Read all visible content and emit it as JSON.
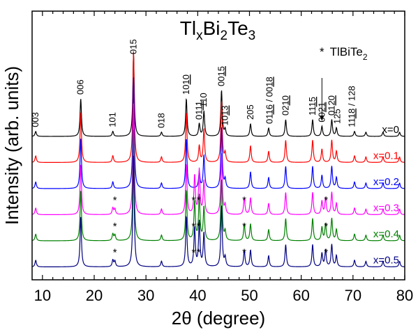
{
  "chart_data": {
    "type": "line",
    "title": "TlxBi2Te3",
    "title_parts": {
      "base1": "Tl",
      "sub1": "x",
      "base2": "Bi",
      "sub2": "2",
      "base3": "Te",
      "sub3": "3"
    },
    "xlabel": "2θ (degree)",
    "ylabel": "Intensity (arb. units)",
    "xlim": [
      8,
      80
    ],
    "x_ticks": [
      10,
      20,
      30,
      40,
      50,
      60,
      70,
      80
    ],
    "legend": {
      "marker": "*",
      "text": "TlBiTe",
      "sub": "2"
    },
    "series": [
      {
        "name": "x=0",
        "color": "#000000",
        "baseline": 0,
        "impurity": false
      },
      {
        "name": "x=0.1",
        "color": "#ff0000",
        "baseline": 1,
        "impurity": false
      },
      {
        "name": "x=0.2",
        "color": "#0000ff",
        "baseline": 2,
        "impurity": false
      },
      {
        "name": "x=0.3",
        "color": "#ff00ff",
        "baseline": 3,
        "impurity": true
      },
      {
        "name": "x=0.4",
        "color": "#008000",
        "baseline": 4,
        "impurity": true
      },
      {
        "name": "x=0.5",
        "color": "#000080",
        "baseline": 5,
        "impurity": true
      }
    ],
    "peaks": [
      {
        "x": 8.7,
        "h": 0.06
      },
      {
        "x": 17.4,
        "h": 0.45
      },
      {
        "x": 23.6,
        "h": 0.06
      },
      {
        "x": 27.6,
        "h": 1.0
      },
      {
        "x": 33.0,
        "h": 0.05
      },
      {
        "x": 37.8,
        "h": 0.45
      },
      {
        "x": 40.3,
        "h": 0.15
      },
      {
        "x": 41.2,
        "h": 0.3
      },
      {
        "x": 44.6,
        "h": 0.55
      },
      {
        "x": 45.3,
        "h": 0.08
      },
      {
        "x": 50.2,
        "h": 0.15
      },
      {
        "x": 53.7,
        "h": 0.1
      },
      {
        "x": 57.0,
        "h": 0.2
      },
      {
        "x": 62.2,
        "h": 0.2
      },
      {
        "x": 64.0,
        "h": 0.12
      },
      {
        "x": 65.9,
        "h": 0.2
      },
      {
        "x": 66.8,
        "h": 0.1
      },
      {
        "x": 70.3,
        "h": 0.06
      },
      {
        "x": 72.5,
        "h": 0.05
      },
      {
        "x": 75.8,
        "h": 0.05
      },
      {
        "x": 79.0,
        "h": 0.05
      }
    ],
    "impurity_peaks": [
      {
        "x": 24.0,
        "h": 0.05
      },
      {
        "x": 39.4,
        "h": 0.35
      },
      {
        "x": 40.3,
        "h": 0.25
      },
      {
        "x": 49.0,
        "h": 0.15
      },
      {
        "x": 64.7,
        "h": 0.15
      }
    ],
    "star_markers": [
      {
        "x": 24.0,
        "series_index": 3
      },
      {
        "x": 39.2,
        "series_index": 3
      },
      {
        "x": 40.2,
        "series_index": 3
      },
      {
        "x": 49.0,
        "series_index": 3
      },
      {
        "x": 64.8,
        "series_index": 3
      },
      {
        "x": 24.0,
        "series_index": 4
      },
      {
        "x": 39.2,
        "series_index": 4
      },
      {
        "x": 40.2,
        "series_index": 4
      },
      {
        "x": 49.0,
        "series_index": 4
      },
      {
        "x": 64.8,
        "series_index": 4
      },
      {
        "x": 24.0,
        "series_index": 5
      },
      {
        "x": 39.2,
        "series_index": 5
      },
      {
        "x": 40.2,
        "series_index": 5
      },
      {
        "x": 49.0,
        "series_index": 5
      },
      {
        "x": 64.8,
        "series_index": 5
      }
    ],
    "peak_labels": [
      {
        "x": 8.7,
        "text": "003",
        "under": ""
      },
      {
        "x": 17.4,
        "text": "006",
        "under": ""
      },
      {
        "x": 23.6,
        "text": "101",
        "under": ""
      },
      {
        "x": 27.6,
        "text": "015",
        "under": ""
      },
      {
        "x": 33.0,
        "text": "018",
        "under": ""
      },
      {
        "x": 37.8,
        "text": "10",
        "under": "10"
      },
      {
        "x": 40.3,
        "text": "01",
        "under": "11"
      },
      {
        "x": 41.2,
        "text": "110",
        "under": ""
      },
      {
        "x": 44.6,
        "text": "00",
        "under": "15"
      },
      {
        "x": 45.3,
        "text": "10",
        "under": "13"
      },
      {
        "x": 50.2,
        "text": "205",
        "under": ""
      },
      {
        "x": 53.9,
        "text": "01",
        "under": "16",
        "suffix": " / 00",
        "under2": "18"
      },
      {
        "x": 57.0,
        "text": "02",
        "under": "10"
      },
      {
        "x": 62.2,
        "text": "11",
        "under": "15"
      },
      {
        "x": 64.0,
        "text": "00",
        "under": "21"
      },
      {
        "x": 65.9,
        "text": "01",
        "under": "20"
      },
      {
        "x": 67.0,
        "text": "125",
        "under": ""
      },
      {
        "x": 69.8,
        "text": "11",
        "under": "18",
        "suffix": " / 128"
      }
    ]
  }
}
